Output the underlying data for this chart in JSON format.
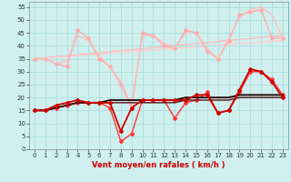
{
  "title": "",
  "xlabel": "Vent moyen/en rafales ( km/h )",
  "ylabel": "",
  "xlim": [
    -0.5,
    23.5
  ],
  "ylim": [
    0,
    57
  ],
  "xticks": [
    0,
    1,
    2,
    3,
    4,
    5,
    6,
    7,
    8,
    9,
    10,
    11,
    12,
    13,
    14,
    15,
    16,
    17,
    18,
    19,
    20,
    21,
    22,
    23
  ],
  "yticks": [
    0,
    5,
    10,
    15,
    20,
    25,
    30,
    35,
    40,
    45,
    50,
    55
  ],
  "background_color": "#cff0ee",
  "grid_color": "#aadddd",
  "series": [
    {
      "label": "rafales_max_light",
      "x": [
        0,
        1,
        2,
        3,
        4,
        5,
        6,
        7,
        8,
        9,
        10,
        11,
        12,
        13,
        14,
        15,
        16,
        17,
        18,
        19,
        20,
        21,
        22,
        23
      ],
      "y": [
        35,
        35,
        33,
        32,
        46,
        43,
        35,
        32,
        25,
        16,
        45,
        44,
        40,
        39,
        46,
        45,
        38,
        35,
        42,
        52,
        53,
        54,
        43,
        43
      ],
      "color": "#ffaaaa",
      "lw": 1.0,
      "marker": "D",
      "ms": 2.0,
      "zorder": 2
    },
    {
      "label": "rafales_moy_light",
      "x": [
        0,
        1,
        2,
        3,
        4,
        5,
        6,
        7,
        8,
        9,
        10,
        11,
        12,
        13,
        14,
        15,
        16,
        17,
        18,
        19,
        20,
        21,
        22,
        23
      ],
      "y": [
        35,
        35,
        33,
        34,
        44,
        42,
        36,
        32,
        26,
        17,
        44,
        44,
        41,
        39,
        45,
        45,
        39,
        35,
        43,
        51,
        54,
        55,
        52,
        43
      ],
      "color": "#ffbbbb",
      "lw": 1.0,
      "marker": null,
      "ms": 0,
      "zorder": 2
    },
    {
      "label": "vent_max_dark",
      "x": [
        0,
        1,
        2,
        3,
        4,
        5,
        6,
        7,
        8,
        9,
        10,
        11,
        12,
        13,
        14,
        15,
        16,
        17,
        18,
        19,
        20,
        21,
        22,
        23
      ],
      "y": [
        15,
        15,
        17,
        18,
        19,
        18,
        18,
        18,
        7,
        16,
        19,
        19,
        19,
        19,
        19,
        21,
        21,
        14,
        15,
        23,
        31,
        30,
        26,
        20
      ],
      "color": "#cc0000",
      "lw": 1.3,
      "marker": "D",
      "ms": 2.0,
      "zorder": 4
    },
    {
      "label": "vent_moy_dark",
      "x": [
        0,
        1,
        2,
        3,
        4,
        5,
        6,
        7,
        8,
        9,
        10,
        11,
        12,
        13,
        14,
        15,
        16,
        17,
        18,
        19,
        20,
        21,
        22,
        23
      ],
      "y": [
        15,
        15,
        16,
        17,
        18,
        18,
        18,
        16,
        3,
        6,
        19,
        19,
        19,
        12,
        18,
        19,
        22,
        14,
        15,
        22,
        30,
        30,
        27,
        21
      ],
      "color": "#ff3333",
      "lw": 1.0,
      "marker": "D",
      "ms": 2.0,
      "zorder": 3
    },
    {
      "label": "trend_dark1",
      "x": [
        0,
        1,
        2,
        3,
        4,
        5,
        6,
        7,
        8,
        9,
        10,
        11,
        12,
        13,
        14,
        15,
        16,
        17,
        18,
        19,
        20,
        21,
        22,
        23
      ],
      "y": [
        15,
        15,
        16,
        17,
        18,
        18,
        18,
        19,
        19,
        19,
        19,
        19,
        19,
        19,
        20,
        20,
        20,
        20,
        20,
        21,
        21,
        21,
        21,
        21
      ],
      "color": "#220000",
      "lw": 1.3,
      "marker": null,
      "ms": 0,
      "zorder": 3
    },
    {
      "label": "trend_dark2",
      "x": [
        0,
        1,
        2,
        3,
        4,
        5,
        6,
        7,
        8,
        9,
        10,
        11,
        12,
        13,
        14,
        15,
        16,
        17,
        18,
        19,
        20,
        21,
        22,
        23
      ],
      "y": [
        15,
        15,
        16,
        17,
        18,
        18,
        18,
        18,
        18,
        18,
        18,
        18,
        18,
        18,
        19,
        19,
        19,
        19,
        19,
        20,
        20,
        20,
        20,
        20
      ],
      "color": "#551111",
      "lw": 1.0,
      "marker": null,
      "ms": 0,
      "zorder": 3
    },
    {
      "label": "trend_light1",
      "x": [
        0,
        23
      ],
      "y": [
        35,
        44
      ],
      "color": "#ffbbbb",
      "lw": 1.0,
      "marker": null,
      "ms": 0,
      "zorder": 1
    },
    {
      "label": "trend_light2",
      "x": [
        0,
        23
      ],
      "y": [
        35,
        42
      ],
      "color": "#ffcccc",
      "lw": 1.0,
      "marker": null,
      "ms": 0,
      "zorder": 1
    }
  ]
}
